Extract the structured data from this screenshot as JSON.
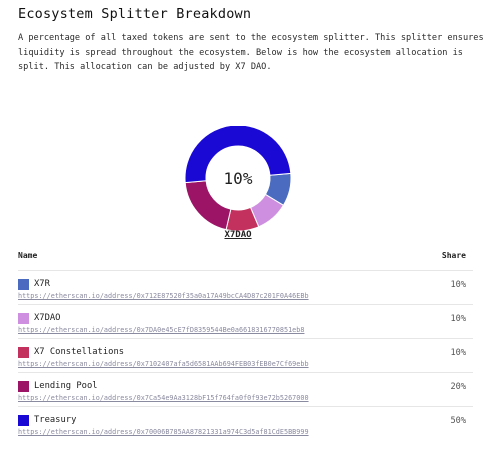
{
  "title": "Ecosystem Splitter Breakdown",
  "description": "A percentage of all taxed tokens are sent to the ecosystem splitter. This splitter ensures liquidity is spread throughout the ecosystem. Below is how the ecosystem allocation is split. This allocation can be adjusted by X7 DAO.",
  "chart": {
    "center_label": "10%",
    "active_label": "X7DAO"
  },
  "chart_data": {
    "type": "pie",
    "categories": [
      "X7R",
      "X7DAO",
      "X7 Constellations",
      "Lending Pool",
      "Treasury"
    ],
    "values": [
      10,
      10,
      10,
      20,
      50
    ],
    "colors": [
      "#4a6bbf",
      "#cf8fe0",
      "#c3325f",
      "#9c1466",
      "#1a08d4"
    ],
    "donut": true
  },
  "table": {
    "header_name": "Name",
    "header_share": "Share",
    "rows": [
      {
        "name": "X7R",
        "share": "10%",
        "color": "#4a6bbf",
        "link": "https://etherscan.io/address/0x712E87520f35a0a17A49bcCA4D87c201F0A46EBb"
      },
      {
        "name": "X7DAO",
        "share": "10%",
        "color": "#cf8fe0",
        "link": "https://etherscan.io/address/0x7DA0e45cE7fD8359544Be0a6618316770851eb8"
      },
      {
        "name": "X7 Constellations",
        "share": "10%",
        "color": "#c3325f",
        "link": "https://etherscan.io/address/0x7102407afa5d6581AAb694FEB03fEB0e7Cf69ebb"
      },
      {
        "name": "Lending Pool",
        "share": "20%",
        "color": "#9c1466",
        "link": "https://etherscan.io/address/0x7Ca54e9Aa3128bF15f764fa0f0f93e72b5267000"
      },
      {
        "name": "Treasury",
        "share": "50%",
        "color": "#1a08d4",
        "link": "https://etherscan.io/address/0x70006B785AA87821331a974C3d5af81CdE5BB999"
      }
    ]
  }
}
